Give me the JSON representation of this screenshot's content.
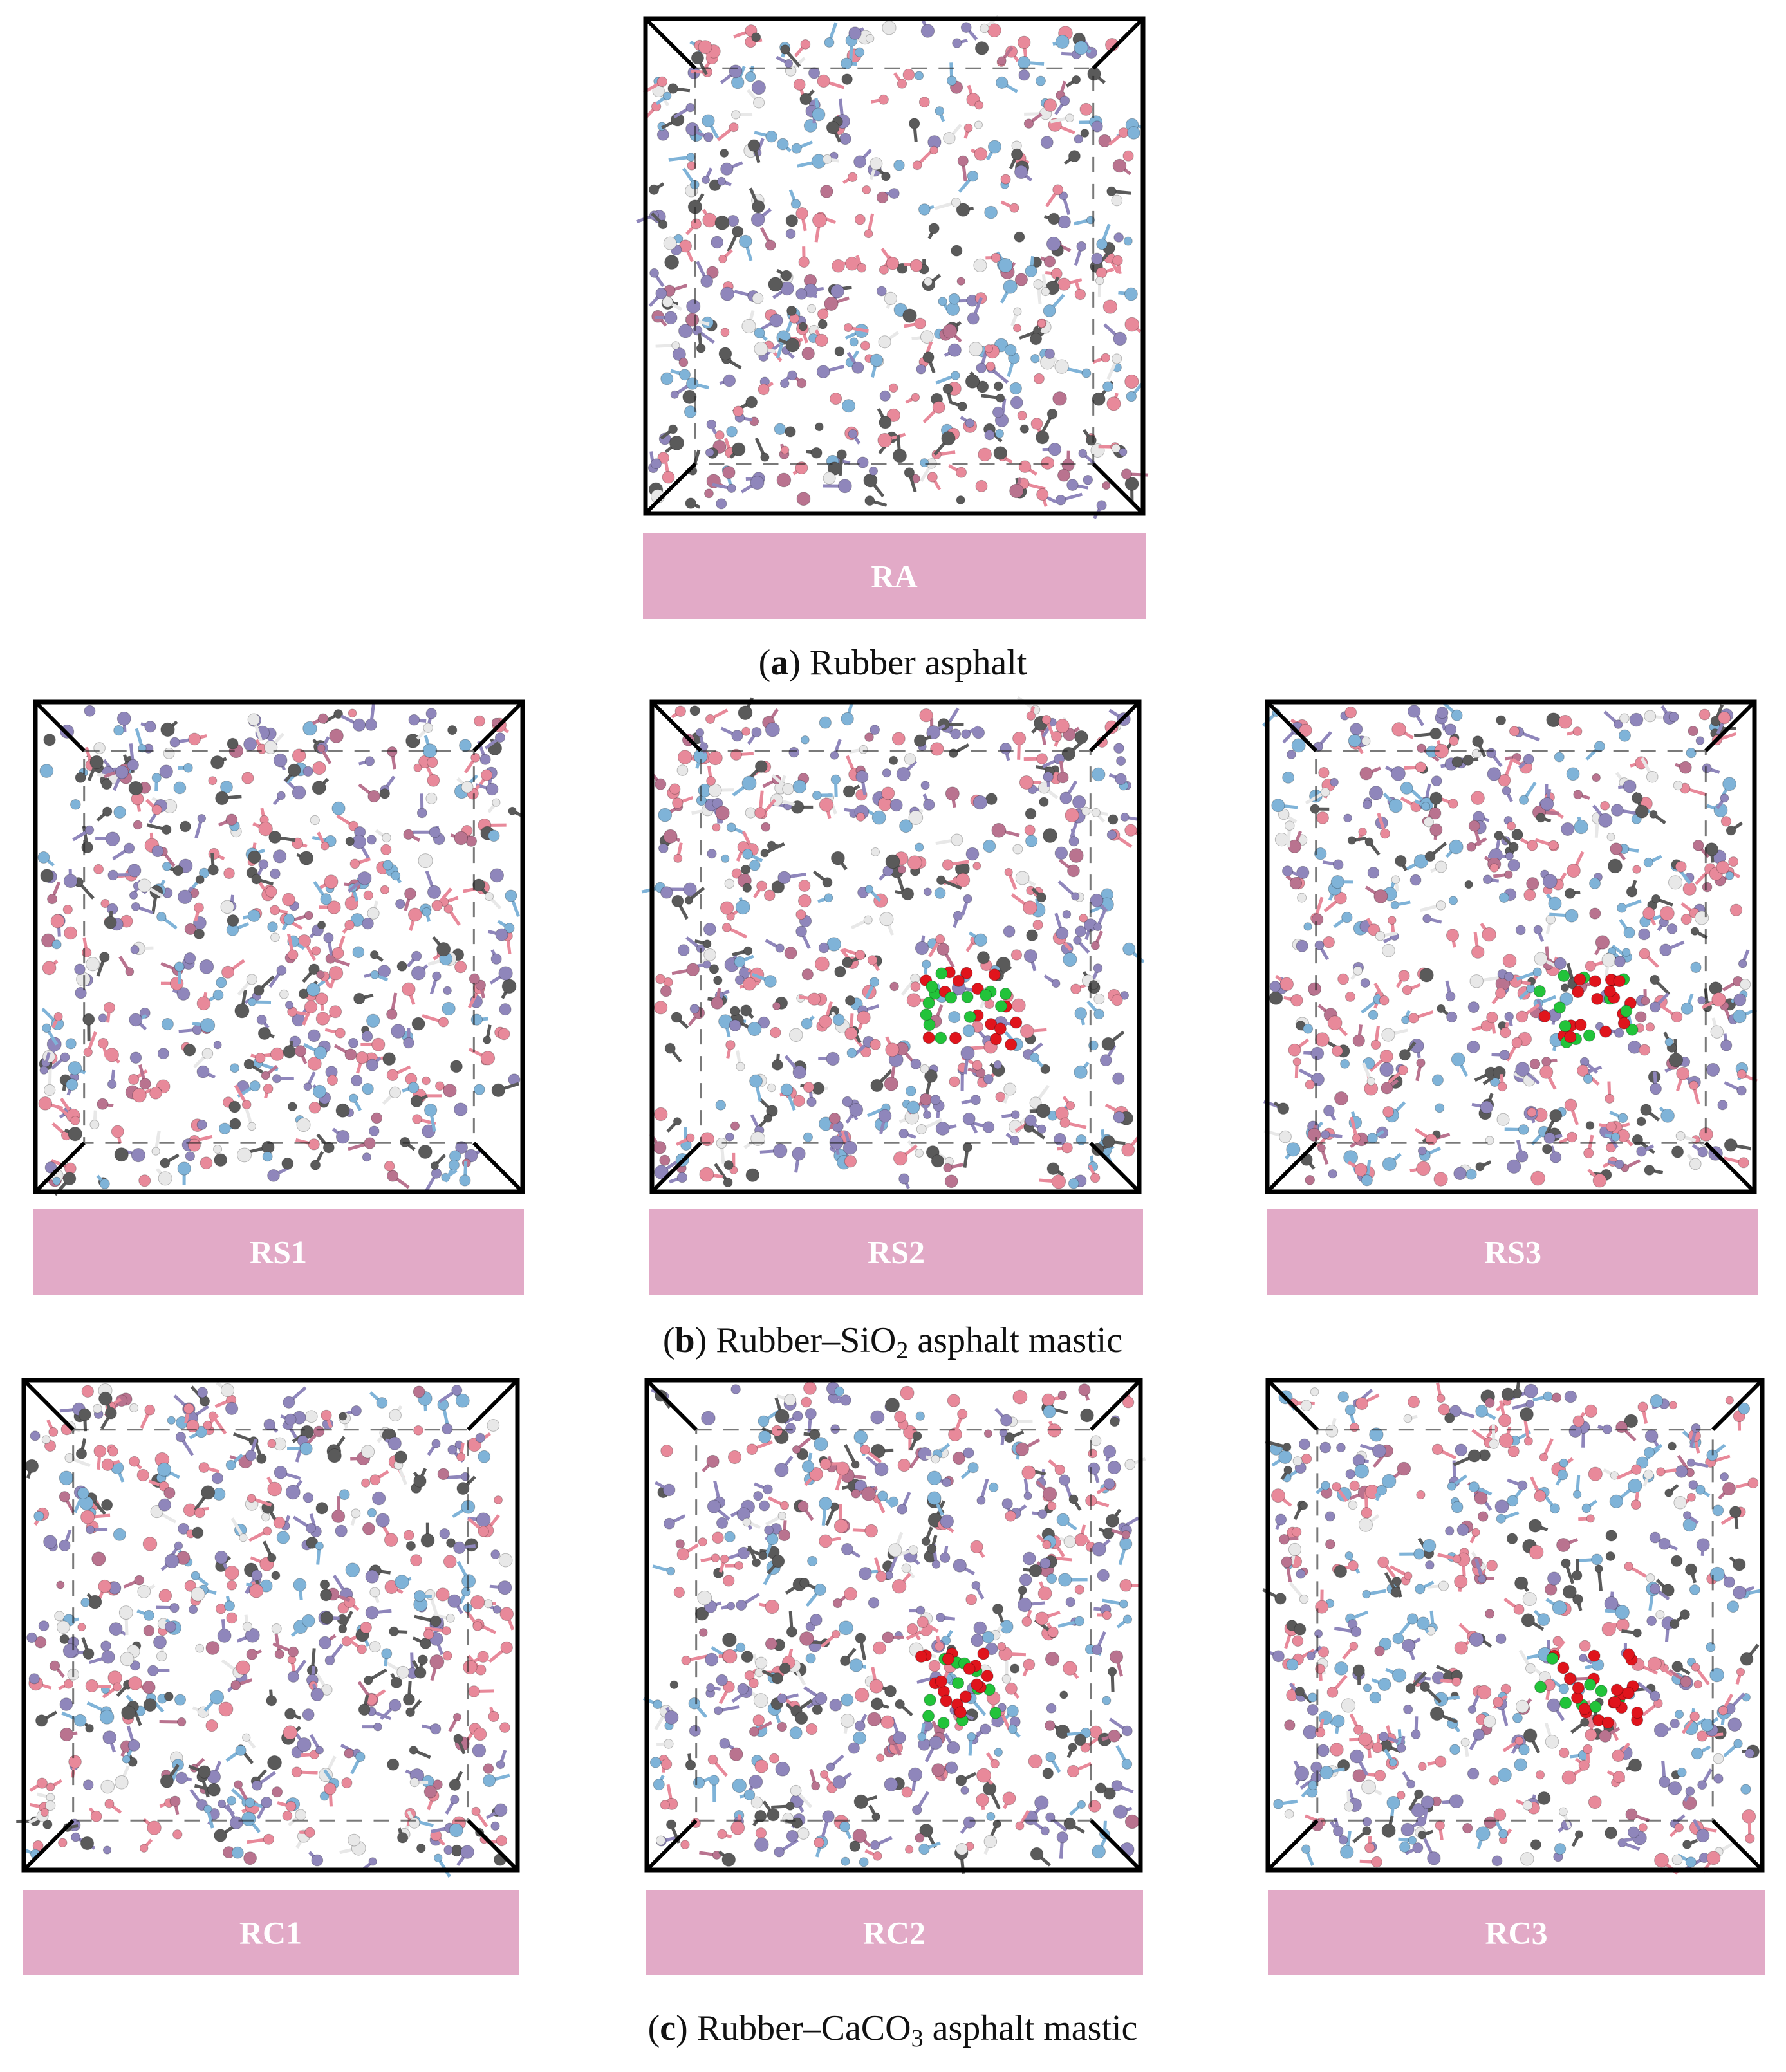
{
  "panels": [
    {
      "caption": [
        "(",
        "a",
        ") Rubber asphalt"
      ],
      "models": [
        "RA"
      ]
    },
    {
      "caption": [
        "(",
        "b",
        ") Rubber–SiO",
        "2",
        " asphalt mastic"
      ],
      "models": [
        "RS1",
        "RS2",
        "RS3"
      ]
    },
    {
      "caption": [
        "(",
        "c",
        ") Rubber–CaCO",
        "3",
        " asphalt mastic"
      ],
      "models": [
        "RC1",
        "RC2",
        "RC3"
      ]
    }
  ]
}
